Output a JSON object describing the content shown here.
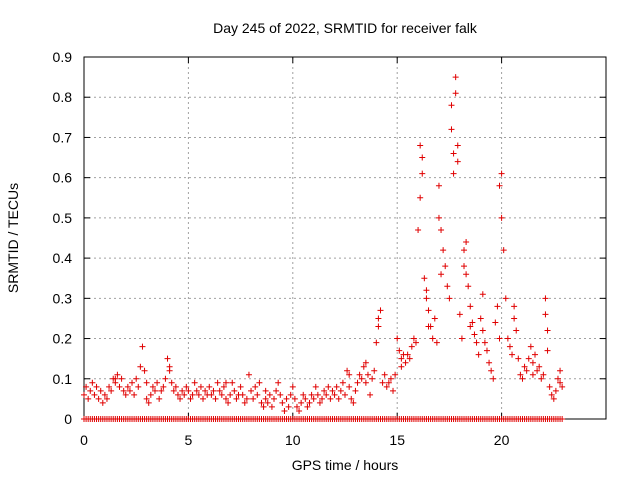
{
  "chart_data": {
    "type": "scatter",
    "title": "Day 245 of 2022, SRMTID for receiver falk",
    "xlabel": "GPS time / hours",
    "ylabel": "SRMTID / TECUs",
    "xlim": [
      0,
      25
    ],
    "ylim": [
      0,
      0.9
    ],
    "xticks": [
      0,
      5,
      10,
      15,
      20
    ],
    "xtick_labels": [
      "0",
      "5",
      "10",
      "15",
      "20"
    ],
    "yticks": [
      0,
      0.1,
      0.2,
      0.3,
      0.4,
      0.5,
      0.6,
      0.7,
      0.8,
      0.9
    ],
    "ytick_labels": [
      "0",
      "0.1",
      "0.2",
      "0.3",
      "0.4",
      "0.5",
      "0.6",
      "0.7",
      "0.8",
      "0.9"
    ],
    "grid": true,
    "marker": "plus",
    "color": "#e00000",
    "series": [
      {
        "name": "SRMTID",
        "baseline": {
          "y": 0,
          "x_start": 0,
          "x_end": 22.9,
          "step": 0.1
        },
        "points": [
          [
            0.0,
            0.06
          ],
          [
            0.1,
            0.08
          ],
          [
            0.2,
            0.05
          ],
          [
            0.3,
            0.07
          ],
          [
            0.4,
            0.09
          ],
          [
            0.5,
            0.06
          ],
          [
            0.6,
            0.08
          ],
          [
            0.7,
            0.05
          ],
          [
            0.8,
            0.07
          ],
          [
            0.9,
            0.04
          ],
          [
            1.0,
            0.06
          ],
          [
            1.1,
            0.05
          ],
          [
            1.2,
            0.08
          ],
          [
            1.3,
            0.07
          ],
          [
            1.4,
            0.1
          ],
          [
            1.5,
            0.09
          ],
          [
            1.6,
            0.11
          ],
          [
            1.7,
            0.08
          ],
          [
            1.8,
            0.1
          ],
          [
            1.9,
            0.07
          ],
          [
            2.0,
            0.06
          ],
          [
            2.1,
            0.08
          ],
          [
            2.2,
            0.07
          ],
          [
            2.3,
            0.09
          ],
          [
            2.4,
            0.06
          ],
          [
            2.5,
            0.1
          ],
          [
            2.6,
            0.08
          ],
          [
            2.7,
            0.13
          ],
          [
            2.8,
            0.18
          ],
          [
            2.9,
            0.12
          ],
          [
            3.0,
            0.05
          ],
          [
            3.1,
            0.04
          ],
          [
            3.2,
            0.06
          ],
          [
            3.3,
            0.08
          ],
          [
            3.4,
            0.07
          ],
          [
            3.5,
            0.09
          ],
          [
            3.6,
            0.05
          ],
          [
            3.7,
            0.07
          ],
          [
            3.8,
            0.08
          ],
          [
            3.9,
            0.1
          ],
          [
            4.0,
            0.15
          ],
          [
            4.1,
            0.12
          ],
          [
            4.2,
            0.09
          ],
          [
            4.3,
            0.07
          ],
          [
            4.4,
            0.08
          ],
          [
            4.5,
            0.06
          ],
          [
            4.6,
            0.05
          ],
          [
            4.7,
            0.07
          ],
          [
            4.8,
            0.06
          ],
          [
            4.9,
            0.08
          ],
          [
            5.0,
            0.07
          ],
          [
            5.1,
            0.05
          ],
          [
            5.2,
            0.06
          ],
          [
            5.3,
            0.09
          ],
          [
            5.4,
            0.07
          ],
          [
            5.5,
            0.06
          ],
          [
            5.6,
            0.08
          ],
          [
            5.7,
            0.05
          ],
          [
            5.8,
            0.07
          ],
          [
            5.9,
            0.06
          ],
          [
            6.0,
            0.08
          ],
          [
            6.1,
            0.06
          ],
          [
            6.2,
            0.07
          ],
          [
            6.3,
            0.05
          ],
          [
            6.4,
            0.09
          ],
          [
            6.5,
            0.07
          ],
          [
            6.6,
            0.06
          ],
          [
            6.7,
            0.08
          ],
          [
            6.8,
            0.05
          ],
          [
            6.9,
            0.04
          ],
          [
            7.0,
            0.06
          ],
          [
            7.1,
            0.09
          ],
          [
            7.2,
            0.07
          ],
          [
            7.3,
            0.05
          ],
          [
            7.4,
            0.06
          ],
          [
            7.5,
            0.08
          ],
          [
            7.6,
            0.06
          ],
          [
            7.7,
            0.04
          ],
          [
            7.8,
            0.05
          ],
          [
            7.9,
            0.11
          ],
          [
            8.0,
            0.07
          ],
          [
            8.1,
            0.05
          ],
          [
            8.2,
            0.08
          ],
          [
            8.3,
            0.06
          ],
          [
            8.4,
            0.09
          ],
          [
            8.5,
            0.04
          ],
          [
            8.6,
            0.03
          ],
          [
            8.7,
            0.05
          ],
          [
            8.8,
            0.04
          ],
          [
            8.9,
            0.06
          ],
          [
            9.0,
            0.03
          ],
          [
            9.1,
            0.05
          ],
          [
            9.2,
            0.07
          ],
          [
            9.3,
            0.09
          ],
          [
            9.4,
            0.06
          ],
          [
            9.5,
            0.04
          ],
          [
            9.6,
            0.02
          ],
          [
            9.7,
            0.05
          ],
          [
            9.8,
            0.03
          ],
          [
            9.9,
            0.06
          ],
          [
            10.0,
            0.08
          ],
          [
            10.1,
            0.05
          ],
          [
            10.2,
            0.03
          ],
          [
            10.3,
            0.02
          ],
          [
            10.4,
            0.04
          ],
          [
            10.5,
            0.06
          ],
          [
            10.6,
            0.05
          ],
          [
            10.7,
            0.03
          ],
          [
            10.8,
            0.04
          ],
          [
            10.9,
            0.06
          ],
          [
            11.0,
            0.05
          ],
          [
            11.1,
            0.08
          ],
          [
            11.2,
            0.06
          ],
          [
            11.3,
            0.04
          ],
          [
            11.4,
            0.05
          ],
          [
            11.5,
            0.07
          ],
          [
            11.6,
            0.06
          ],
          [
            11.7,
            0.08
          ],
          [
            11.8,
            0.05
          ],
          [
            11.9,
            0.07
          ],
          [
            12.0,
            0.06
          ],
          [
            12.1,
            0.08
          ],
          [
            12.2,
            0.05
          ],
          [
            12.3,
            0.07
          ],
          [
            12.4,
            0.09
          ],
          [
            12.5,
            0.06
          ],
          [
            12.6,
            0.12
          ],
          [
            12.7,
            0.11
          ],
          [
            12.8,
            0.05
          ],
          [
            12.9,
            0.04
          ],
          [
            13.0,
            0.07
          ],
          [
            13.1,
            0.09
          ],
          [
            13.2,
            0.11
          ],
          [
            13.3,
            0.1
          ],
          [
            13.4,
            0.13
          ],
          [
            13.5,
            0.09
          ],
          [
            13.6,
            0.11
          ],
          [
            13.7,
            0.06
          ],
          [
            13.8,
            0.1
          ],
          [
            13.9,
            0.12
          ],
          [
            14.0,
            0.19
          ],
          [
            14.1,
            0.23
          ],
          [
            14.2,
            0.27
          ],
          [
            14.3,
            0.09
          ],
          [
            14.4,
            0.11
          ],
          [
            14.5,
            0.08
          ],
          [
            14.6,
            0.09
          ],
          [
            14.7,
            0.1
          ],
          [
            14.8,
            0.07
          ],
          [
            14.9,
            0.11
          ],
          [
            15.0,
            0.2
          ],
          [
            15.1,
            0.17
          ],
          [
            15.2,
            0.15
          ],
          [
            15.3,
            0.16
          ],
          [
            15.4,
            0.14
          ],
          [
            15.5,
            0.16
          ],
          [
            15.6,
            0.15
          ],
          [
            15.7,
            0.18
          ],
          [
            15.8,
            0.2
          ],
          [
            15.9,
            0.19
          ],
          [
            16.0,
            0.47
          ],
          [
            16.1,
            0.68
          ],
          [
            16.2,
            0.65
          ],
          [
            16.3,
            0.35
          ],
          [
            16.4,
            0.3
          ],
          [
            16.5,
            0.27
          ],
          [
            16.6,
            0.23
          ],
          [
            16.7,
            0.2
          ],
          [
            16.8,
            0.25
          ],
          [
            16.9,
            0.19
          ],
          [
            17.0,
            0.58
          ],
          [
            17.1,
            0.47
          ],
          [
            17.2,
            0.42
          ],
          [
            17.3,
            0.38
          ],
          [
            17.4,
            0.33
          ],
          [
            17.5,
            0.3
          ],
          [
            17.6,
            0.78
          ],
          [
            17.7,
            0.66
          ],
          [
            17.8,
            0.85
          ],
          [
            17.9,
            0.68
          ],
          [
            18.0,
            0.26
          ],
          [
            18.1,
            0.2
          ],
          [
            18.2,
            0.42
          ],
          [
            18.3,
            0.44
          ],
          [
            18.4,
            0.33
          ],
          [
            18.5,
            0.28
          ],
          [
            18.6,
            0.24
          ],
          [
            18.7,
            0.21
          ],
          [
            18.8,
            0.19
          ],
          [
            18.9,
            0.16
          ],
          [
            19.0,
            0.25
          ],
          [
            19.1,
            0.22
          ],
          [
            19.2,
            0.19
          ],
          [
            19.3,
            0.17
          ],
          [
            19.4,
            0.14
          ],
          [
            19.5,
            0.12
          ],
          [
            19.6,
            0.1
          ],
          [
            19.7,
            0.24
          ],
          [
            19.8,
            0.28
          ],
          [
            19.9,
            0.58
          ],
          [
            20.0,
            0.61
          ],
          [
            20.1,
            0.42
          ],
          [
            20.2,
            0.3
          ],
          [
            20.3,
            0.2
          ],
          [
            20.4,
            0.18
          ],
          [
            20.5,
            0.16
          ],
          [
            20.6,
            0.28
          ],
          [
            20.7,
            0.22
          ],
          [
            20.8,
            0.15
          ],
          [
            20.9,
            0.11
          ],
          [
            21.0,
            0.1
          ],
          [
            21.1,
            0.13
          ],
          [
            21.2,
            0.12
          ],
          [
            21.3,
            0.15
          ],
          [
            21.4,
            0.18
          ],
          [
            21.5,
            0.14
          ],
          [
            21.6,
            0.16
          ],
          [
            21.7,
            0.12
          ],
          [
            21.8,
            0.13
          ],
          [
            21.9,
            0.1
          ],
          [
            22.0,
            0.11
          ],
          [
            22.1,
            0.3
          ],
          [
            22.2,
            0.22
          ],
          [
            22.3,
            0.08
          ],
          [
            22.4,
            0.06
          ],
          [
            22.5,
            0.05
          ],
          [
            22.6,
            0.07
          ],
          [
            22.7,
            0.1
          ],
          [
            22.8,
            0.12
          ],
          [
            22.9,
            0.08
          ],
          [
            1.5,
            0.1
          ],
          [
            3.0,
            0.09
          ],
          [
            4.1,
            0.13
          ],
          [
            6.8,
            0.09
          ],
          [
            8.7,
            0.07
          ],
          [
            12.7,
            0.08
          ],
          [
            13.5,
            0.14
          ],
          [
            14.1,
            0.25
          ],
          [
            15.2,
            0.13
          ],
          [
            16.1,
            0.55
          ],
          [
            16.2,
            0.61
          ],
          [
            16.4,
            0.32
          ],
          [
            16.5,
            0.23
          ],
          [
            17.0,
            0.5
          ],
          [
            17.1,
            0.36
          ],
          [
            17.6,
            0.72
          ],
          [
            17.7,
            0.61
          ],
          [
            17.8,
            0.81
          ],
          [
            17.9,
            0.64
          ],
          [
            18.2,
            0.38
          ],
          [
            18.3,
            0.36
          ],
          [
            18.5,
            0.23
          ],
          [
            19.1,
            0.31
          ],
          [
            19.9,
            0.2
          ],
          [
            20.0,
            0.5
          ],
          [
            20.6,
            0.25
          ],
          [
            21.5,
            0.11
          ],
          [
            22.1,
            0.26
          ],
          [
            22.2,
            0.17
          ],
          [
            22.8,
            0.09
          ]
        ]
      }
    ]
  }
}
